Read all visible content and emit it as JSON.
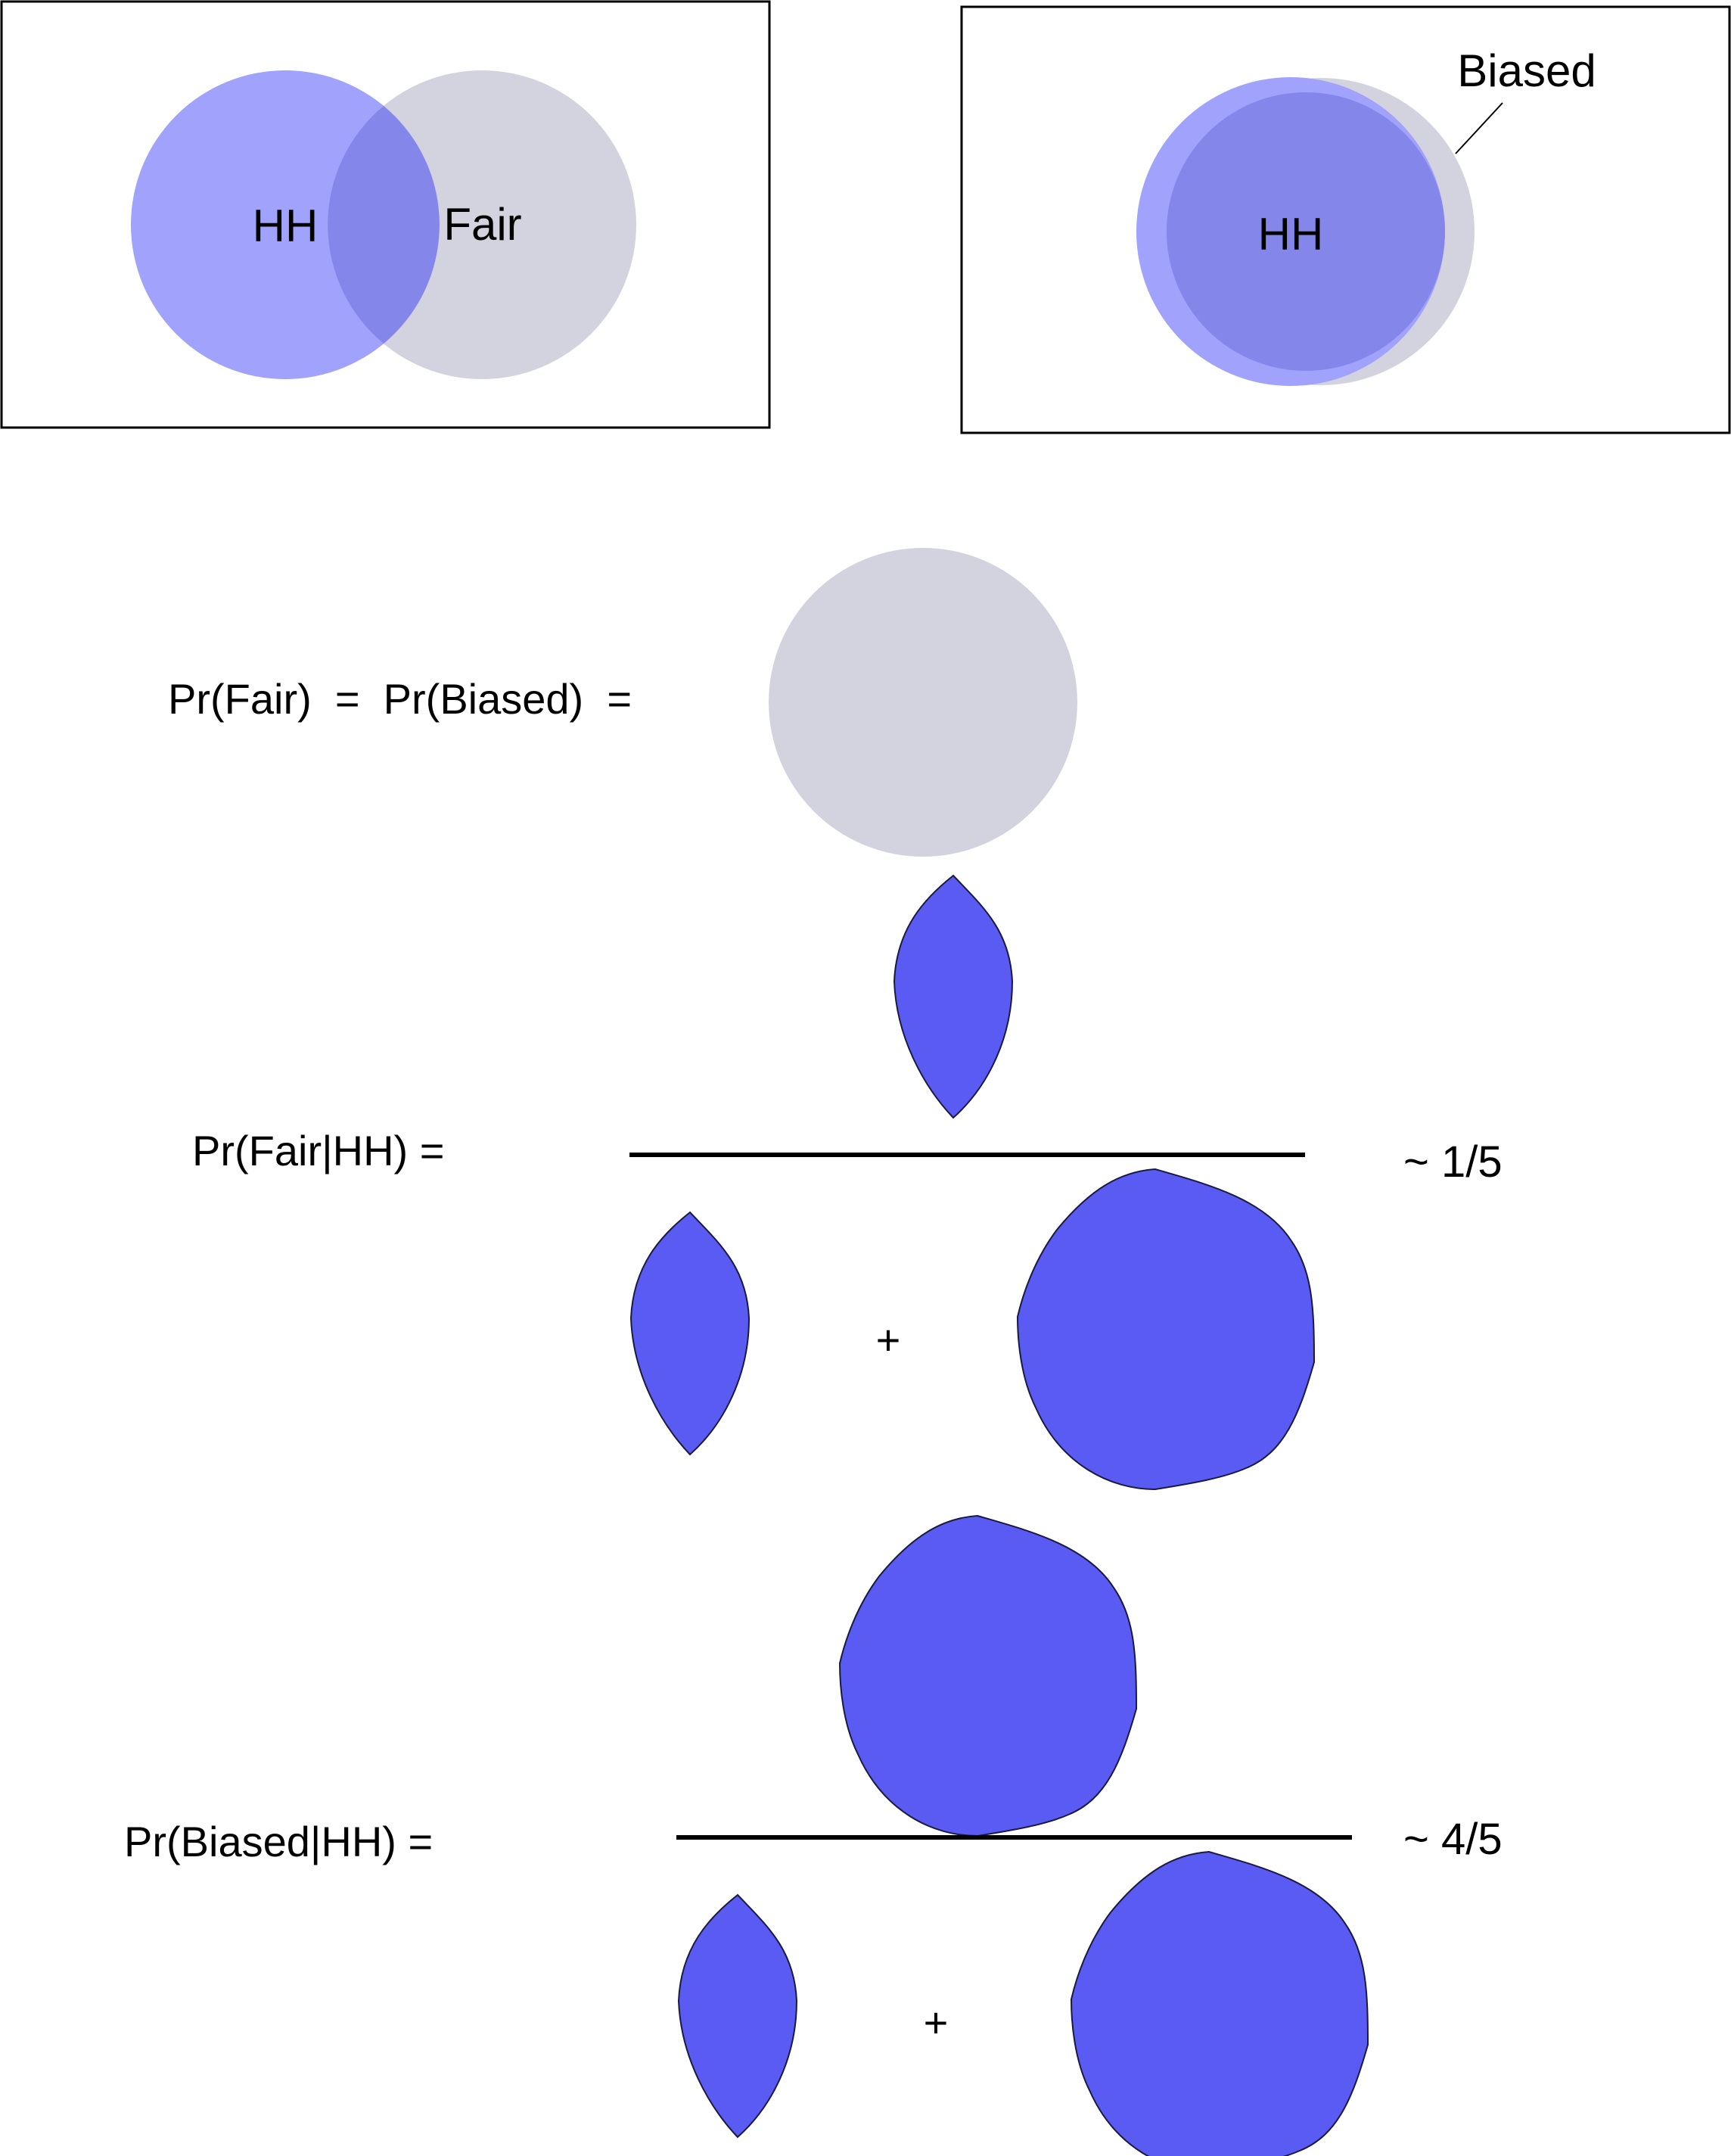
{
  "colors": {
    "hh_circle": "#a0a2fc",
    "fair_circle": "#d3d3df",
    "overlap": "#8486ea",
    "shape_fill": "#5a5bf3",
    "frame_border": "#000000"
  },
  "venn_fair": {
    "hh_label": "HH",
    "fair_label": "Fair"
  },
  "venn_biased": {
    "hh_label": "HH",
    "biased_label": "Biased"
  },
  "prior": {
    "label": "Pr(Fair)  =  Pr(Biased)  ="
  },
  "posterior_fair": {
    "label": "Pr(Fair|HH) =",
    "plus": "+",
    "result": "~ 1/5"
  },
  "posterior_biased": {
    "label": "Pr(Biased|HH) =",
    "plus": "+",
    "result": "~ 4/5"
  }
}
